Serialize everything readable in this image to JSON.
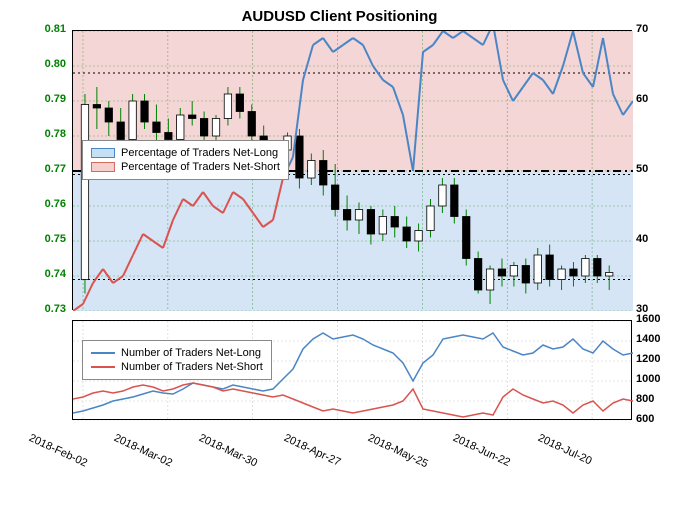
{
  "title": "AUDUSD Client Positioning",
  "title_fontsize": 15,
  "main_chart": {
    "background_top": "#f5d6d6",
    "background_bottom": "#d6e5f5",
    "split_pct": 50,
    "ylim_left": [
      0.73,
      0.81
    ],
    "ytick_step_left": 0.01,
    "ylim_right": [
      30,
      70
    ],
    "ytick_step_right": 10,
    "left_tick_color": "#008000",
    "right_tick_color": "#000000",
    "grid_color": "#008000",
    "grid_dash": "2,2",
    "xticks": [
      "2018-Feb-02",
      "2018-Mar-02",
      "2018-Mar-30",
      "2018-Apr-27",
      "2018-May-25",
      "2018-Jun-22",
      "2018-Jul-20"
    ],
    "legend": {
      "items": [
        {
          "label": "Percentage of Traders Net-Long",
          "fill": "#c5dff5",
          "border": "#4a86c5"
        },
        {
          "label": "Percentage of Traders Net-Short",
          "fill": "#f5d0cc",
          "border": "#d26b60"
        }
      ]
    },
    "dashed_line_y_right": 50,
    "dashed_line_color": "#000000",
    "dashed_line_width": 2,
    "candles": {
      "color_up_body": "#ffffff",
      "color_down_body": "#000000",
      "wick_color": "#008000",
      "border_color": "#000000",
      "data": [
        {
          "o": 0.739,
          "h": 0.792,
          "l": 0.735,
          "c": 0.789
        },
        {
          "o": 0.789,
          "h": 0.794,
          "l": 0.782,
          "c": 0.788
        },
        {
          "o": 0.788,
          "h": 0.79,
          "l": 0.78,
          "c": 0.784
        },
        {
          "o": 0.784,
          "h": 0.788,
          "l": 0.776,
          "c": 0.779
        },
        {
          "o": 0.779,
          "h": 0.792,
          "l": 0.777,
          "c": 0.79
        },
        {
          "o": 0.79,
          "h": 0.792,
          "l": 0.782,
          "c": 0.784
        },
        {
          "o": 0.784,
          "h": 0.789,
          "l": 0.778,
          "c": 0.781
        },
        {
          "o": 0.781,
          "h": 0.785,
          "l": 0.775,
          "c": 0.779
        },
        {
          "o": 0.779,
          "h": 0.788,
          "l": 0.778,
          "c": 0.786
        },
        {
          "o": 0.786,
          "h": 0.79,
          "l": 0.783,
          "c": 0.785
        },
        {
          "o": 0.785,
          "h": 0.787,
          "l": 0.778,
          "c": 0.78
        },
        {
          "o": 0.78,
          "h": 0.786,
          "l": 0.778,
          "c": 0.785
        },
        {
          "o": 0.785,
          "h": 0.794,
          "l": 0.783,
          "c": 0.792
        },
        {
          "o": 0.792,
          "h": 0.794,
          "l": 0.785,
          "c": 0.787
        },
        {
          "o": 0.787,
          "h": 0.789,
          "l": 0.778,
          "c": 0.78
        },
        {
          "o": 0.78,
          "h": 0.783,
          "l": 0.769,
          "c": 0.772
        },
        {
          "o": 0.772,
          "h": 0.778,
          "l": 0.77,
          "c": 0.776
        },
        {
          "o": 0.776,
          "h": 0.781,
          "l": 0.774,
          "c": 0.78
        },
        {
          "o": 0.78,
          "h": 0.782,
          "l": 0.765,
          "c": 0.768
        },
        {
          "o": 0.768,
          "h": 0.775,
          "l": 0.766,
          "c": 0.773
        },
        {
          "o": 0.773,
          "h": 0.776,
          "l": 0.763,
          "c": 0.766
        },
        {
          "o": 0.766,
          "h": 0.772,
          "l": 0.757,
          "c": 0.759
        },
        {
          "o": 0.759,
          "h": 0.763,
          "l": 0.753,
          "c": 0.756
        },
        {
          "o": 0.756,
          "h": 0.761,
          "l": 0.752,
          "c": 0.759
        },
        {
          "o": 0.759,
          "h": 0.76,
          "l": 0.749,
          "c": 0.752
        },
        {
          "o": 0.752,
          "h": 0.759,
          "l": 0.75,
          "c": 0.757
        },
        {
          "o": 0.757,
          "h": 0.76,
          "l": 0.751,
          "c": 0.754
        },
        {
          "o": 0.754,
          "h": 0.757,
          "l": 0.748,
          "c": 0.75
        },
        {
          "o": 0.75,
          "h": 0.755,
          "l": 0.747,
          "c": 0.753
        },
        {
          "o": 0.753,
          "h": 0.762,
          "l": 0.751,
          "c": 0.76
        },
        {
          "o": 0.76,
          "h": 0.768,
          "l": 0.758,
          "c": 0.766
        },
        {
          "o": 0.766,
          "h": 0.768,
          "l": 0.755,
          "c": 0.757
        },
        {
          "o": 0.757,
          "h": 0.759,
          "l": 0.743,
          "c": 0.745
        },
        {
          "o": 0.745,
          "h": 0.747,
          "l": 0.735,
          "c": 0.736
        },
        {
          "o": 0.736,
          "h": 0.743,
          "l": 0.732,
          "c": 0.742
        },
        {
          "o": 0.742,
          "h": 0.745,
          "l": 0.737,
          "c": 0.74
        },
        {
          "o": 0.74,
          "h": 0.744,
          "l": 0.737,
          "c": 0.743
        },
        {
          "o": 0.743,
          "h": 0.745,
          "l": 0.735,
          "c": 0.738
        },
        {
          "o": 0.738,
          "h": 0.748,
          "l": 0.736,
          "c": 0.746
        },
        {
          "o": 0.746,
          "h": 0.749,
          "l": 0.737,
          "c": 0.739
        },
        {
          "o": 0.739,
          "h": 0.743,
          "l": 0.736,
          "c": 0.742
        },
        {
          "o": 0.742,
          "h": 0.744,
          "l": 0.737,
          "c": 0.74
        },
        {
          "o": 0.74,
          "h": 0.746,
          "l": 0.738,
          "c": 0.745
        },
        {
          "o": 0.745,
          "h": 0.746,
          "l": 0.738,
          "c": 0.74
        },
        {
          "o": 0.74,
          "h": 0.743,
          "l": 0.736,
          "c": 0.741
        }
      ]
    },
    "pct_line": {
      "color_short": "#d9534f",
      "color_long": "#4a86c5",
      "width": 2,
      "values": [
        30,
        31,
        34,
        36,
        34,
        35,
        38,
        41,
        40,
        39,
        43,
        46,
        45,
        47,
        45,
        44,
        47,
        46,
        44,
        42,
        43,
        49,
        52,
        63,
        68,
        69,
        67,
        68,
        69,
        68,
        65,
        63,
        62,
        58,
        50,
        67,
        68,
        70,
        69,
        70,
        69,
        68,
        71,
        63,
        60,
        62,
        64,
        63,
        61,
        65,
        70,
        64,
        62,
        69,
        61,
        58,
        60
      ]
    },
    "dotted_levels_left": [
      0.739,
      0.769,
      0.798
    ],
    "dotted_color": "#000000"
  },
  "sub_chart": {
    "ylim_right": [
      600,
      1600
    ],
    "ytick_step_right": 200,
    "grid_color": "#cccccc",
    "legend": {
      "items": [
        {
          "label": "Number of Traders Net-Long",
          "color": "#4a86c5"
        },
        {
          "label": "Number of Traders Net-Short",
          "color": "#d9534f"
        }
      ]
    },
    "long_line": {
      "color": "#4a86c5",
      "width": 1.5,
      "values": [
        680,
        700,
        730,
        760,
        800,
        820,
        840,
        870,
        900,
        880,
        870,
        920,
        980,
        960,
        940,
        920,
        960,
        940,
        920,
        900,
        920,
        1020,
        1120,
        1320,
        1420,
        1480,
        1420,
        1440,
        1460,
        1420,
        1360,
        1320,
        1280,
        1180,
        1000,
        1180,
        1260,
        1420,
        1440,
        1460,
        1440,
        1420,
        1480,
        1340,
        1300,
        1260,
        1280,
        1360,
        1320,
        1340,
        1420,
        1320,
        1280,
        1400,
        1320,
        1260,
        1280
      ]
    },
    "short_line": {
      "color": "#d9534f",
      "width": 1.5,
      "values": [
        820,
        840,
        880,
        900,
        880,
        900,
        940,
        960,
        940,
        900,
        920,
        960,
        980,
        960,
        940,
        900,
        920,
        900,
        880,
        860,
        840,
        860,
        820,
        780,
        740,
        700,
        720,
        700,
        680,
        700,
        720,
        740,
        760,
        800,
        920,
        720,
        700,
        680,
        660,
        640,
        660,
        680,
        660,
        840,
        920,
        860,
        820,
        780,
        800,
        760,
        680,
        760,
        800,
        700,
        780,
        820,
        800
      ]
    }
  }
}
